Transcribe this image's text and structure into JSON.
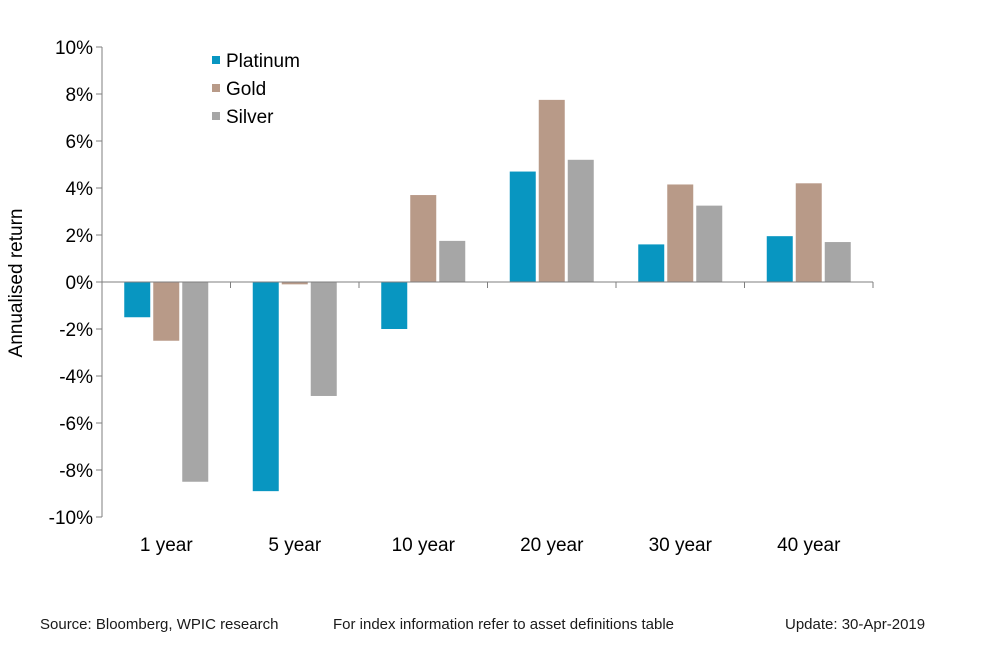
{
  "chart_data": {
    "type": "bar",
    "categories": [
      "1 year",
      "5 year",
      "10 year",
      "20 year",
      "30 year",
      "40 year"
    ],
    "series": [
      {
        "name": "Platinum",
        "color": "#0896c1",
        "values": [
          -1.5,
          -8.9,
          -2.0,
          4.7,
          1.6,
          1.95
        ]
      },
      {
        "name": "Gold",
        "color": "#b89a88",
        "values": [
          -2.5,
          -0.1,
          3.7,
          7.75,
          4.15,
          4.2
        ]
      },
      {
        "name": "Silver",
        "color": "#a6a6a6",
        "values": [
          -8.5,
          -4.85,
          1.75,
          5.2,
          3.25,
          1.7
        ]
      }
    ],
    "ylabel": "Annualised return",
    "ylim": [
      -10,
      10
    ],
    "yticks": [
      -10,
      -8,
      -6,
      -4,
      -2,
      0,
      2,
      4,
      6,
      8,
      10
    ],
    "ytick_labels": [
      "-10%",
      "-8%",
      "-6%",
      "-4%",
      "-2%",
      "0%",
      "2%",
      "4%",
      "6%",
      "8%",
      "10%"
    ],
    "grid": false,
    "legend_position": "top-left"
  },
  "footer": {
    "source": "Source: Bloomberg, WPIC research",
    "note": "For index information refer to asset definitions table",
    "update": "Update: 30-Apr-2019"
  }
}
